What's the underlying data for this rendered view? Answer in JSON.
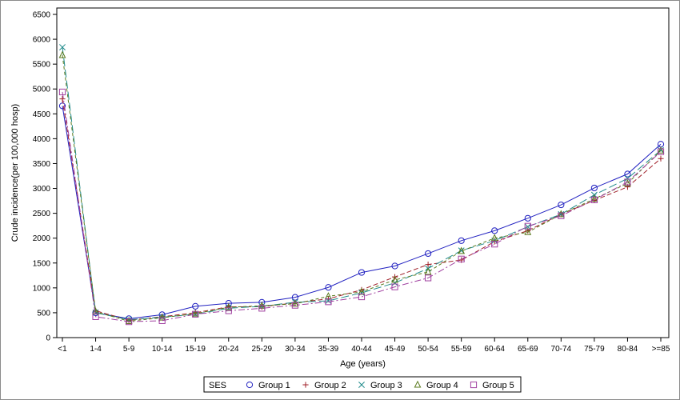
{
  "chart_data": {
    "type": "line",
    "xlabel": "Age (years)",
    "ylabel": "Crude incidence(per 100,000 hosp)",
    "ylim": [
      0,
      6500
    ],
    "yticks": [
      0,
      500,
      1000,
      1500,
      2000,
      2500,
      3000,
      3500,
      4000,
      4500,
      5000,
      5500,
      6000,
      6500
    ],
    "categories": [
      "<1",
      "1-4",
      "5-9",
      "10-14",
      "15-19",
      "20-24",
      "25-29",
      "30-34",
      "35-39",
      "40-44",
      "45-49",
      "50-54",
      "55-59",
      "60-64",
      "65-69",
      "70-74",
      "75-79",
      "80-84",
      ">=85"
    ],
    "legend": {
      "title": "SES",
      "position": "bottom"
    },
    "series": [
      {
        "name": "Group 1",
        "color": "#2020c0",
        "marker": "circle",
        "values": [
          4660,
          500,
          380,
          460,
          630,
          690,
          710,
          810,
          1010,
          1310,
          1440,
          1690,
          1950,
          2150,
          2400,
          2670,
          3010,
          3290,
          3890
        ]
      },
      {
        "name": "Group 2",
        "color": "#a0202a",
        "marker": "plus",
        "values": [
          4800,
          540,
          350,
          420,
          500,
          620,
          620,
          700,
          780,
          960,
          1220,
          1470,
          1560,
          1930,
          2150,
          2480,
          2760,
          3030,
          3600
        ]
      },
      {
        "name": "Group 3",
        "color": "#1f8a8a",
        "marker": "x",
        "values": [
          5840,
          500,
          360,
          410,
          470,
          590,
          630,
          710,
          740,
          900,
          1100,
          1390,
          1750,
          1950,
          2230,
          2480,
          2870,
          3200,
          3770
        ]
      },
      {
        "name": "Group 4",
        "color": "#5a7a1e",
        "marker": "triangle",
        "values": [
          5680,
          520,
          330,
          400,
          480,
          610,
          640,
          680,
          830,
          920,
          1160,
          1320,
          1740,
          2000,
          2120,
          2480,
          2790,
          3100,
          3760
        ]
      },
      {
        "name": "Group 5",
        "color": "#a040a0",
        "marker": "square",
        "values": [
          4940,
          420,
          320,
          340,
          470,
          540,
          590,
          650,
          720,
          820,
          1020,
          1200,
          1580,
          1880,
          2240,
          2450,
          2770,
          3130,
          3740
        ]
      }
    ]
  }
}
